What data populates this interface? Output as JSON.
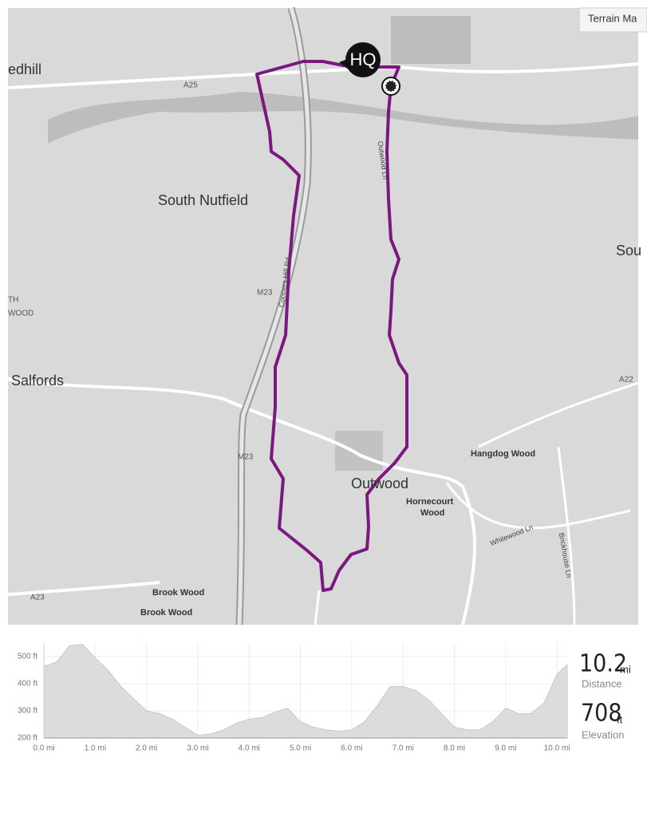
{
  "map": {
    "button": "Terrain Ma",
    "marker": "HQ",
    "labels": [
      "edhill",
      "South Nutfield",
      "Sou",
      "TH",
      "WOOD",
      "Salfords",
      "Outwood",
      "Hangdog Wood",
      "Hornecourt",
      "Wood",
      "Brook Wood",
      "Brook Wood",
      "A25",
      "M23",
      "M23",
      "A22",
      "A23",
      "Coopers Hill Rd",
      "Outwood Ln",
      "Whitewood Ln",
      "Brickhouse Ln"
    ]
  },
  "chart_data": {
    "type": "area",
    "color": "#dcdcdc",
    "x": [
      0,
      0.25,
      0.5,
      0.75,
      1,
      1.25,
      1.5,
      1.75,
      2,
      2.25,
      2.5,
      2.75,
      3,
      3.25,
      3.5,
      3.75,
      4,
      4.25,
      4.5,
      4.75,
      5,
      5.25,
      5.5,
      5.75,
      6,
      6.25,
      6.5,
      6.75,
      7,
      7.25,
      7.5,
      7.75,
      8,
      8.25,
      8.5,
      8.75,
      9,
      9.25,
      9.5,
      9.75,
      10,
      10.2
    ],
    "values": [
      465,
      480,
      540,
      545,
      495,
      450,
      390,
      345,
      300,
      290,
      270,
      240,
      210,
      215,
      230,
      255,
      270,
      275,
      295,
      310,
      260,
      240,
      230,
      225,
      230,
      260,
      320,
      390,
      390,
      375,
      340,
      290,
      240,
      230,
      230,
      260,
      310,
      290,
      290,
      330,
      435,
      470
    ],
    "xlim": [
      0,
      10.2
    ],
    "ylim": [
      200,
      550
    ],
    "xticks": [
      {
        "value": 0,
        "label": "0.0 mi"
      },
      {
        "value": 1,
        "label": "1.0 mi"
      },
      {
        "value": 2,
        "label": "2.0 mi"
      },
      {
        "value": 3,
        "label": "3.0 mi"
      },
      {
        "value": 4,
        "label": "4.0 mi"
      },
      {
        "value": 5,
        "label": "5.0 mi"
      },
      {
        "value": 6,
        "label": "6.0 mi"
      },
      {
        "value": 7,
        "label": "7.0 mi"
      },
      {
        "value": 8,
        "label": "8.0 mi"
      },
      {
        "value": 9,
        "label": "9.0 mi"
      },
      {
        "value": 10,
        "label": "10.0 mi"
      }
    ],
    "yticks": [
      {
        "value": 200,
        "label": "200 ft"
      },
      {
        "value": 300,
        "label": "300 ft"
      },
      {
        "value": 400,
        "label": "400 ft"
      },
      {
        "value": 500,
        "label": "500 ft"
      }
    ],
    "grid": true
  },
  "stats": {
    "distance": {
      "value": 10.2,
      "unit": "mi",
      "label": "Distance"
    },
    "elevation": {
      "value": 708,
      "unit": "ft",
      "label": "Elevation"
    }
  }
}
